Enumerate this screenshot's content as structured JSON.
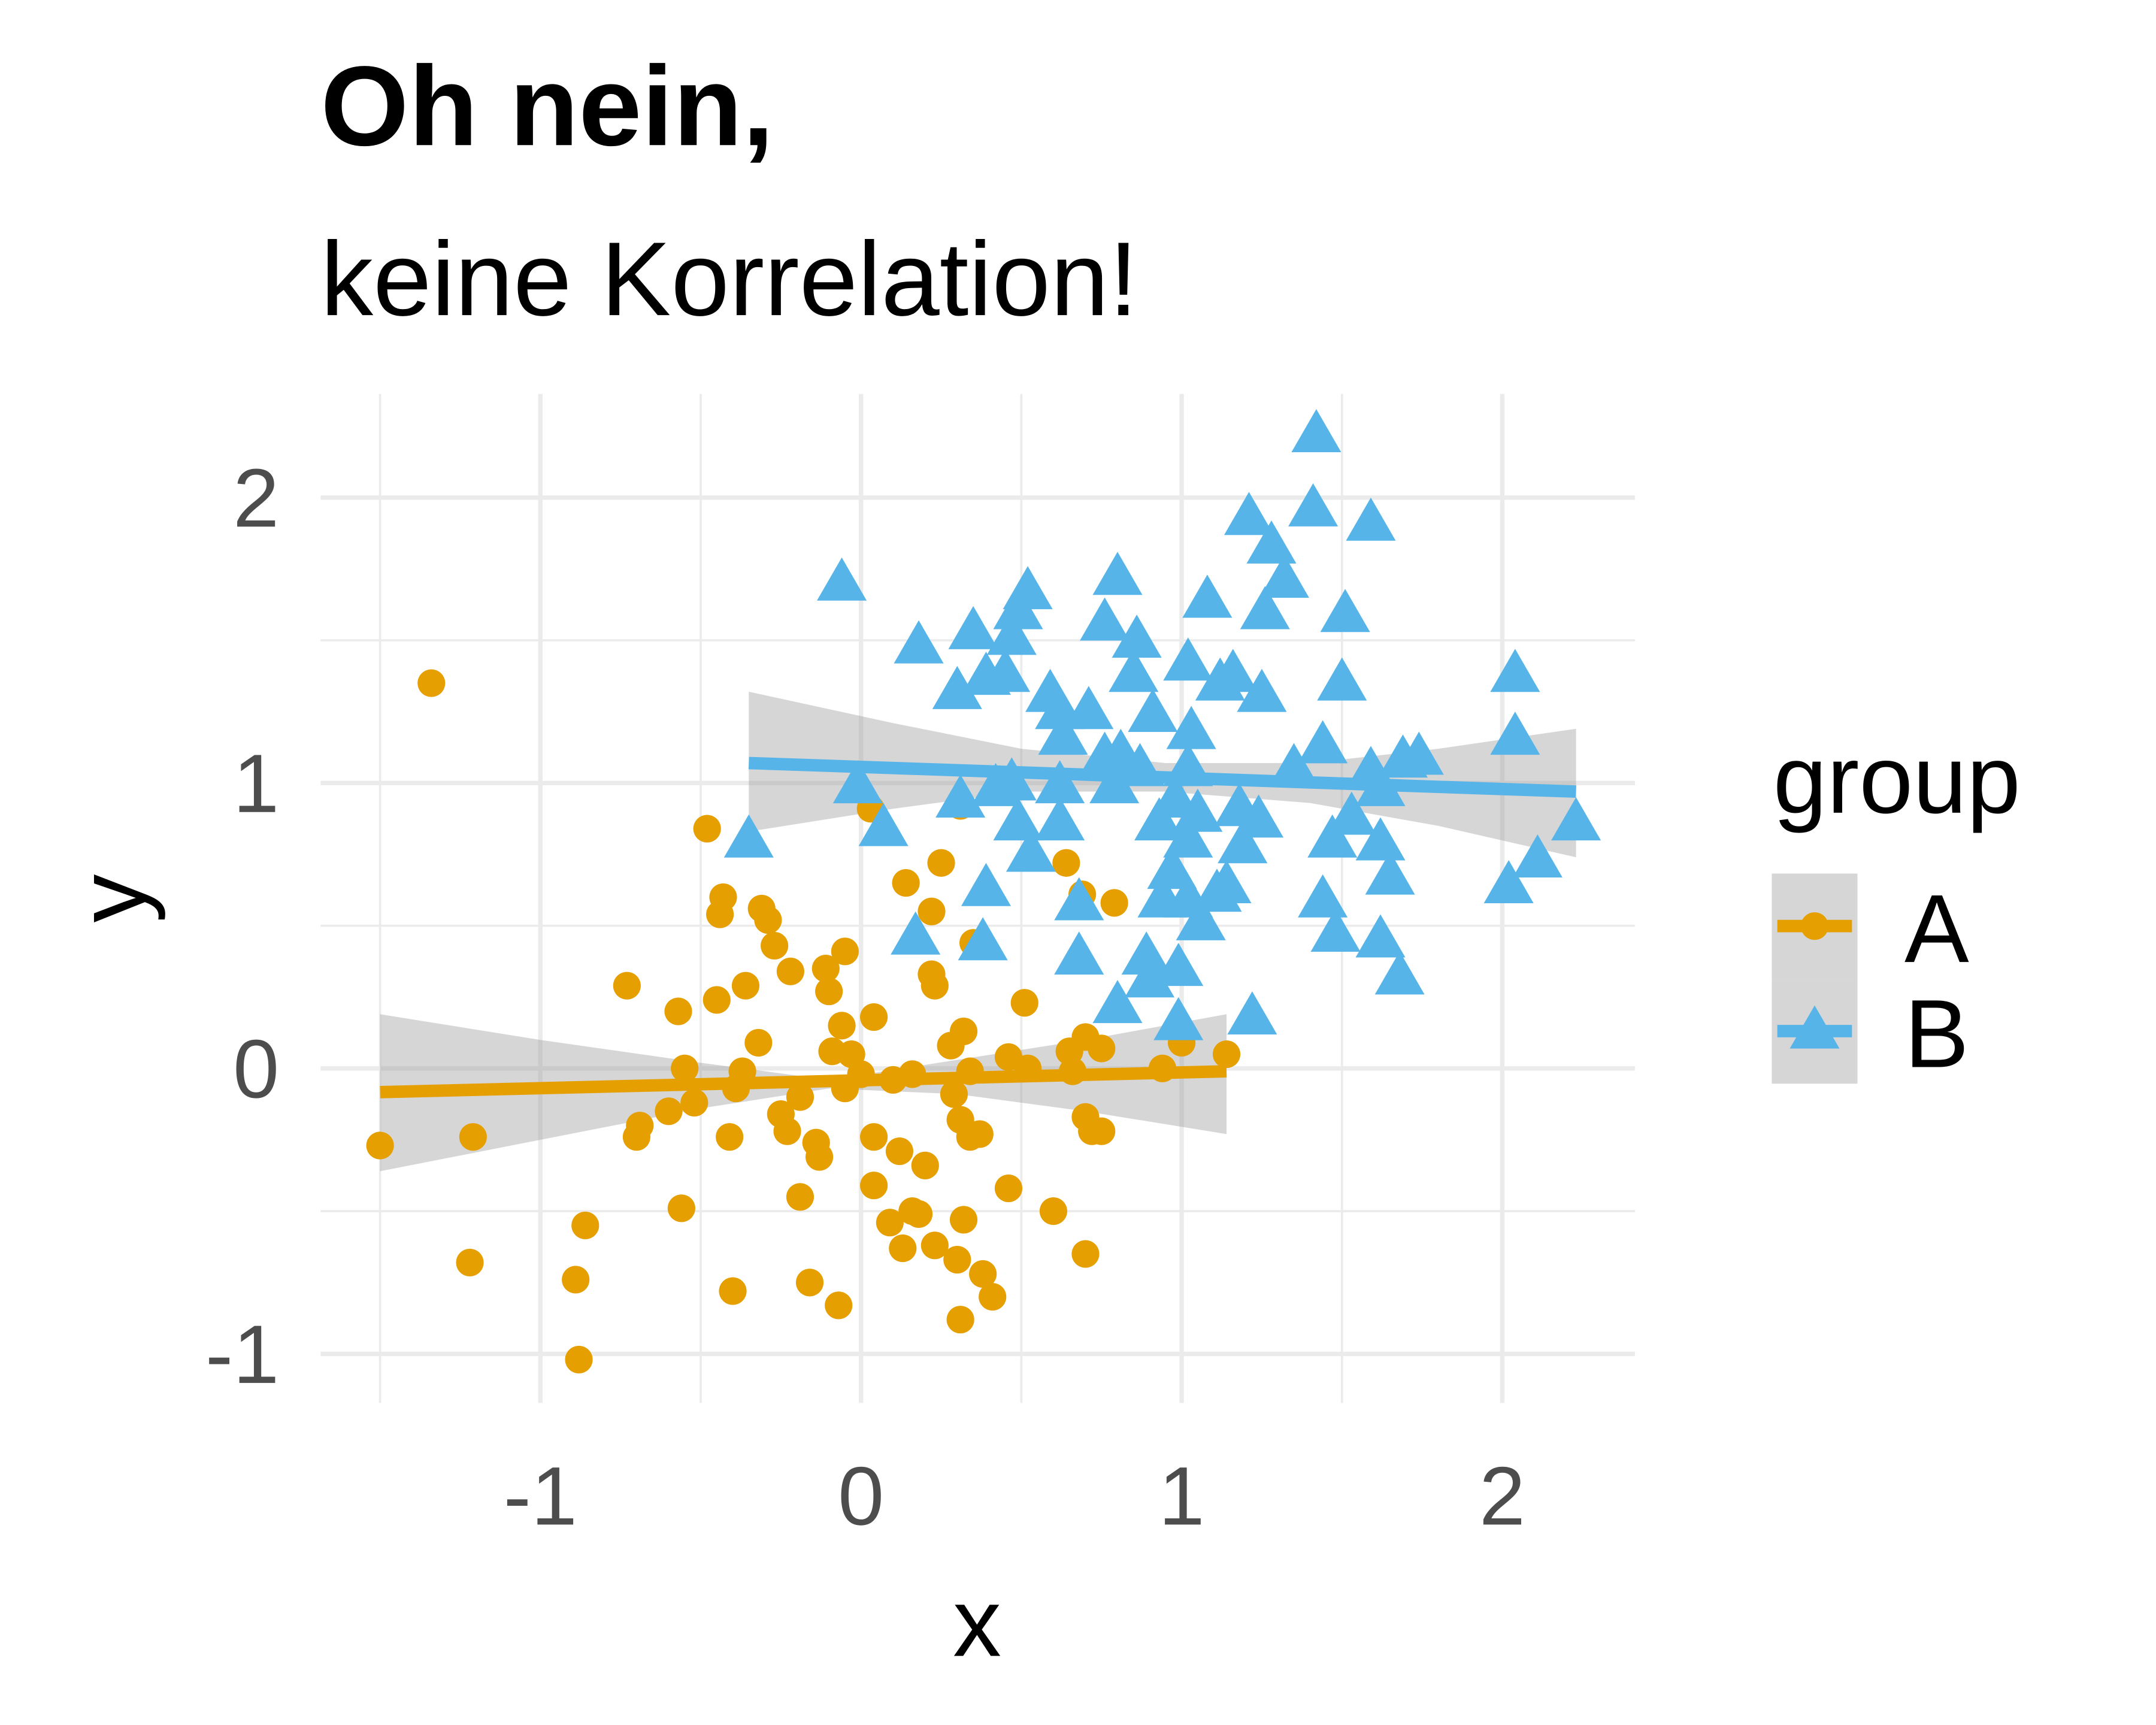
{
  "chart_data": {
    "type": "scatter",
    "title": "Oh nein,",
    "subtitle": "keine Korrelation!",
    "xlabel": "x",
    "ylabel": "y",
    "xlim": [
      -1.6,
      2.5
    ],
    "ylim": [
      -1.15,
      2.3
    ],
    "x_ticks": [
      -1,
      0,
      1,
      2
    ],
    "y_ticks": [
      -1,
      0,
      1,
      2
    ],
    "x_tick_labels": [
      "-1",
      "0",
      "1",
      "2"
    ],
    "y_tick_labels": [
      "-1",
      "0",
      "1",
      "2"
    ],
    "grid": true,
    "legend": {
      "title": "group",
      "position": "right",
      "entries": [
        "A",
        "B"
      ]
    },
    "series": [
      {
        "name": "A",
        "color": "#E69F00",
        "marker": "circle",
        "points": [
          [
            -1.34,
            1.35
          ],
          [
            -1.5,
            -0.27
          ],
          [
            -1.21,
            -0.24
          ],
          [
            -1.22,
            -0.68
          ],
          [
            -0.89,
            -0.74
          ],
          [
            -0.88,
            -1.02
          ],
          [
            -0.86,
            -0.55
          ],
          [
            -0.73,
            0.29
          ],
          [
            -0.7,
            -0.24
          ],
          [
            -0.69,
            -0.2
          ],
          [
            -0.6,
            -0.15
          ],
          [
            -0.57,
            0.2
          ],
          [
            -0.56,
            -0.49
          ],
          [
            -0.55,
            0.0
          ],
          [
            -0.52,
            -0.12
          ],
          [
            -0.48,
            0.84
          ],
          [
            -0.45,
            0.24
          ],
          [
            -0.44,
            0.54
          ],
          [
            -0.43,
            0.6
          ],
          [
            -0.41,
            -0.24
          ],
          [
            -0.4,
            -0.78
          ],
          [
            -0.39,
            -0.07
          ],
          [
            -0.37,
            -0.01
          ],
          [
            -0.36,
            0.29
          ],
          [
            -0.32,
            0.09
          ],
          [
            -0.31,
            0.56
          ],
          [
            -0.29,
            0.52
          ],
          [
            -0.27,
            0.43
          ],
          [
            -0.25,
            -0.16
          ],
          [
            -0.23,
            -0.22
          ],
          [
            -0.22,
            0.34
          ],
          [
            -0.19,
            -0.1
          ],
          [
            -0.19,
            -0.45
          ],
          [
            -0.16,
            -0.75
          ],
          [
            -0.14,
            -0.26
          ],
          [
            -0.13,
            -0.31
          ],
          [
            -0.11,
            0.35
          ],
          [
            -0.1,
            0.27
          ],
          [
            -0.09,
            0.06
          ],
          [
            -0.07,
            -0.83
          ],
          [
            -0.06,
            0.15
          ],
          [
            -0.05,
            0.41
          ],
          [
            -0.05,
            -0.07
          ],
          [
            -0.03,
            0.05
          ],
          [
            0.0,
            -0.02
          ],
          [
            0.03,
            0.91
          ],
          [
            0.04,
            0.18
          ],
          [
            0.04,
            -0.24
          ],
          [
            0.04,
            -0.41
          ],
          [
            0.09,
            -0.54
          ],
          [
            0.1,
            -0.04
          ],
          [
            0.12,
            -0.29
          ],
          [
            0.13,
            -0.63
          ],
          [
            0.14,
            0.65
          ],
          [
            0.16,
            -0.02
          ],
          [
            0.16,
            -0.5
          ],
          [
            0.18,
            -0.51
          ],
          [
            0.2,
            -0.34
          ],
          [
            0.22,
            0.55
          ],
          [
            0.22,
            0.33
          ],
          [
            0.23,
            0.29
          ],
          [
            0.23,
            -0.62
          ],
          [
            0.25,
            0.72
          ],
          [
            0.28,
            0.08
          ],
          [
            0.29,
            -0.09
          ],
          [
            0.3,
            -0.67
          ],
          [
            0.31,
            -0.88
          ],
          [
            0.31,
            -0.18
          ],
          [
            0.31,
            0.92
          ],
          [
            0.32,
            0.13
          ],
          [
            0.32,
            -0.53
          ],
          [
            0.34,
            -0.01
          ],
          [
            0.34,
            -0.24
          ],
          [
            0.35,
            0.44
          ],
          [
            0.37,
            -0.23
          ],
          [
            0.38,
            -0.72
          ],
          [
            0.41,
            -0.8
          ],
          [
            0.46,
            0.04
          ],
          [
            0.46,
            -0.42
          ],
          [
            0.51,
            0.23
          ],
          [
            0.52,
            0.0
          ],
          [
            0.6,
            -0.5
          ],
          [
            0.64,
            0.72
          ],
          [
            0.65,
            0.06
          ],
          [
            0.66,
            -0.01
          ],
          [
            0.69,
            0.61
          ],
          [
            0.7,
            -0.65
          ],
          [
            0.7,
            0.11
          ],
          [
            0.7,
            -0.17
          ],
          [
            0.72,
            -0.22
          ],
          [
            0.75,
            0.07
          ],
          [
            0.75,
            -0.22
          ],
          [
            0.79,
            0.58
          ],
          [
            0.94,
            0.0
          ],
          [
            1.0,
            0.09
          ],
          [
            1.14,
            0.05
          ]
        ],
        "fit": {
          "x": [
            -1.5,
            1.14
          ],
          "y": [
            -0.083,
            -0.01
          ]
        },
        "ribbon": {
          "x": [
            -1.5,
            -1.0,
            -0.5,
            -0.1,
            0.3,
            0.7,
            1.14
          ],
          "lower": [
            -0.36,
            -0.25,
            -0.14,
            -0.07,
            -0.09,
            -0.15,
            -0.23
          ],
          "upper": [
            0.19,
            0.1,
            0.02,
            -0.04,
            0.03,
            0.1,
            0.19
          ]
        }
      },
      {
        "name": "B",
        "color": "#56B4E9",
        "marker": "triangle",
        "points": [
          [
            -0.06,
            1.7
          ],
          [
            -0.35,
            0.8
          ],
          [
            -0.01,
            0.99
          ],
          [
            0.07,
            0.84
          ],
          [
            0.17,
            0.46
          ],
          [
            0.18,
            1.48
          ],
          [
            0.3,
            1.32
          ],
          [
            0.31,
            0.94
          ],
          [
            0.35,
            1.53
          ],
          [
            0.38,
            0.44
          ],
          [
            0.39,
            0.63
          ],
          [
            0.39,
            1.37
          ],
          [
            0.45,
            1.38
          ],
          [
            0.47,
            1.51
          ],
          [
            0.49,
            1.6
          ],
          [
            0.52,
            1.67
          ],
          [
            0.49,
            0.86
          ],
          [
            0.53,
            0.75
          ],
          [
            0.42,
            0.98
          ],
          [
            0.47,
            1.0
          ],
          [
            0.59,
            1.31
          ],
          [
            0.62,
            1.25
          ],
          [
            0.63,
            1.16
          ],
          [
            0.62,
            0.99
          ],
          [
            0.62,
            0.86
          ],
          [
            0.68,
            0.58
          ],
          [
            0.68,
            0.39
          ],
          [
            0.71,
            1.25
          ],
          [
            0.76,
            1.56
          ],
          [
            0.76,
            1.09
          ],
          [
            0.79,
            0.99
          ],
          [
            0.8,
            1.72
          ],
          [
            0.8,
            0.22
          ],
          [
            0.81,
            1.1
          ],
          [
            0.85,
            1.38
          ],
          [
            0.86,
            1.5
          ],
          [
            0.87,
            1.05
          ],
          [
            0.89,
            0.39
          ],
          [
            0.9,
            0.31
          ],
          [
            0.91,
            1.24
          ],
          [
            0.93,
            0.86
          ],
          [
            0.94,
            0.59
          ],
          [
            0.97,
            0.69
          ],
          [
            0.98,
            0.94
          ],
          [
            0.99,
            0.16
          ],
          [
            0.99,
            0.35
          ],
          [
            1.02,
            1.05
          ],
          [
            1.02,
            0.8
          ],
          [
            1.02,
            1.42
          ],
          [
            1.03,
            1.18
          ],
          [
            1.02,
            0.59
          ],
          [
            1.05,
            0.89
          ],
          [
            1.06,
            0.51
          ],
          [
            1.08,
            1.64
          ],
          [
            1.11,
            0.61
          ],
          [
            1.12,
            1.35
          ],
          [
            1.14,
            0.64
          ],
          [
            1.16,
            1.38
          ],
          [
            1.18,
            0.91
          ],
          [
            1.19,
            0.78
          ],
          [
            1.21,
            1.93
          ],
          [
            1.22,
            0.18
          ],
          [
            1.24,
            0.87
          ],
          [
            1.25,
            1.31
          ],
          [
            1.26,
            1.6
          ],
          [
            1.28,
            1.83
          ],
          [
            1.32,
            1.71
          ],
          [
            1.35,
            1.05
          ],
          [
            1.41,
            1.96
          ],
          [
            1.42,
            2.22
          ],
          [
            1.44,
            1.13
          ],
          [
            1.44,
            0.59
          ],
          [
            1.47,
            0.8
          ],
          [
            1.48,
            0.47
          ],
          [
            1.5,
            1.35
          ],
          [
            1.51,
            1.59
          ],
          [
            1.53,
            0.88
          ],
          [
            1.59,
            1.91
          ],
          [
            1.59,
            1.04
          ],
          [
            1.62,
            0.98
          ],
          [
            1.62,
            0.45
          ],
          [
            1.62,
            0.79
          ],
          [
            1.65,
            0.67
          ],
          [
            1.68,
            0.32
          ],
          [
            1.69,
            1.08
          ],
          [
            1.74,
            1.09
          ],
          [
            2.04,
            1.38
          ],
          [
            2.04,
            1.16
          ],
          [
            2.02,
            0.64
          ],
          [
            2.11,
            0.73
          ],
          [
            2.23,
            0.86
          ]
        ],
        "fit": {
          "x": [
            -0.35,
            2.23
          ],
          "y": [
            1.07,
            0.97
          ]
        },
        "ribbon": {
          "x": [
            -0.35,
            0.1,
            0.5,
            0.95,
            1.4,
            1.8,
            2.23
          ],
          "lower": [
            0.83,
            0.91,
            0.97,
            0.97,
            0.93,
            0.85,
            0.74
          ],
          "upper": [
            1.32,
            1.21,
            1.12,
            1.07,
            1.07,
            1.12,
            1.19
          ]
        }
      }
    ]
  }
}
